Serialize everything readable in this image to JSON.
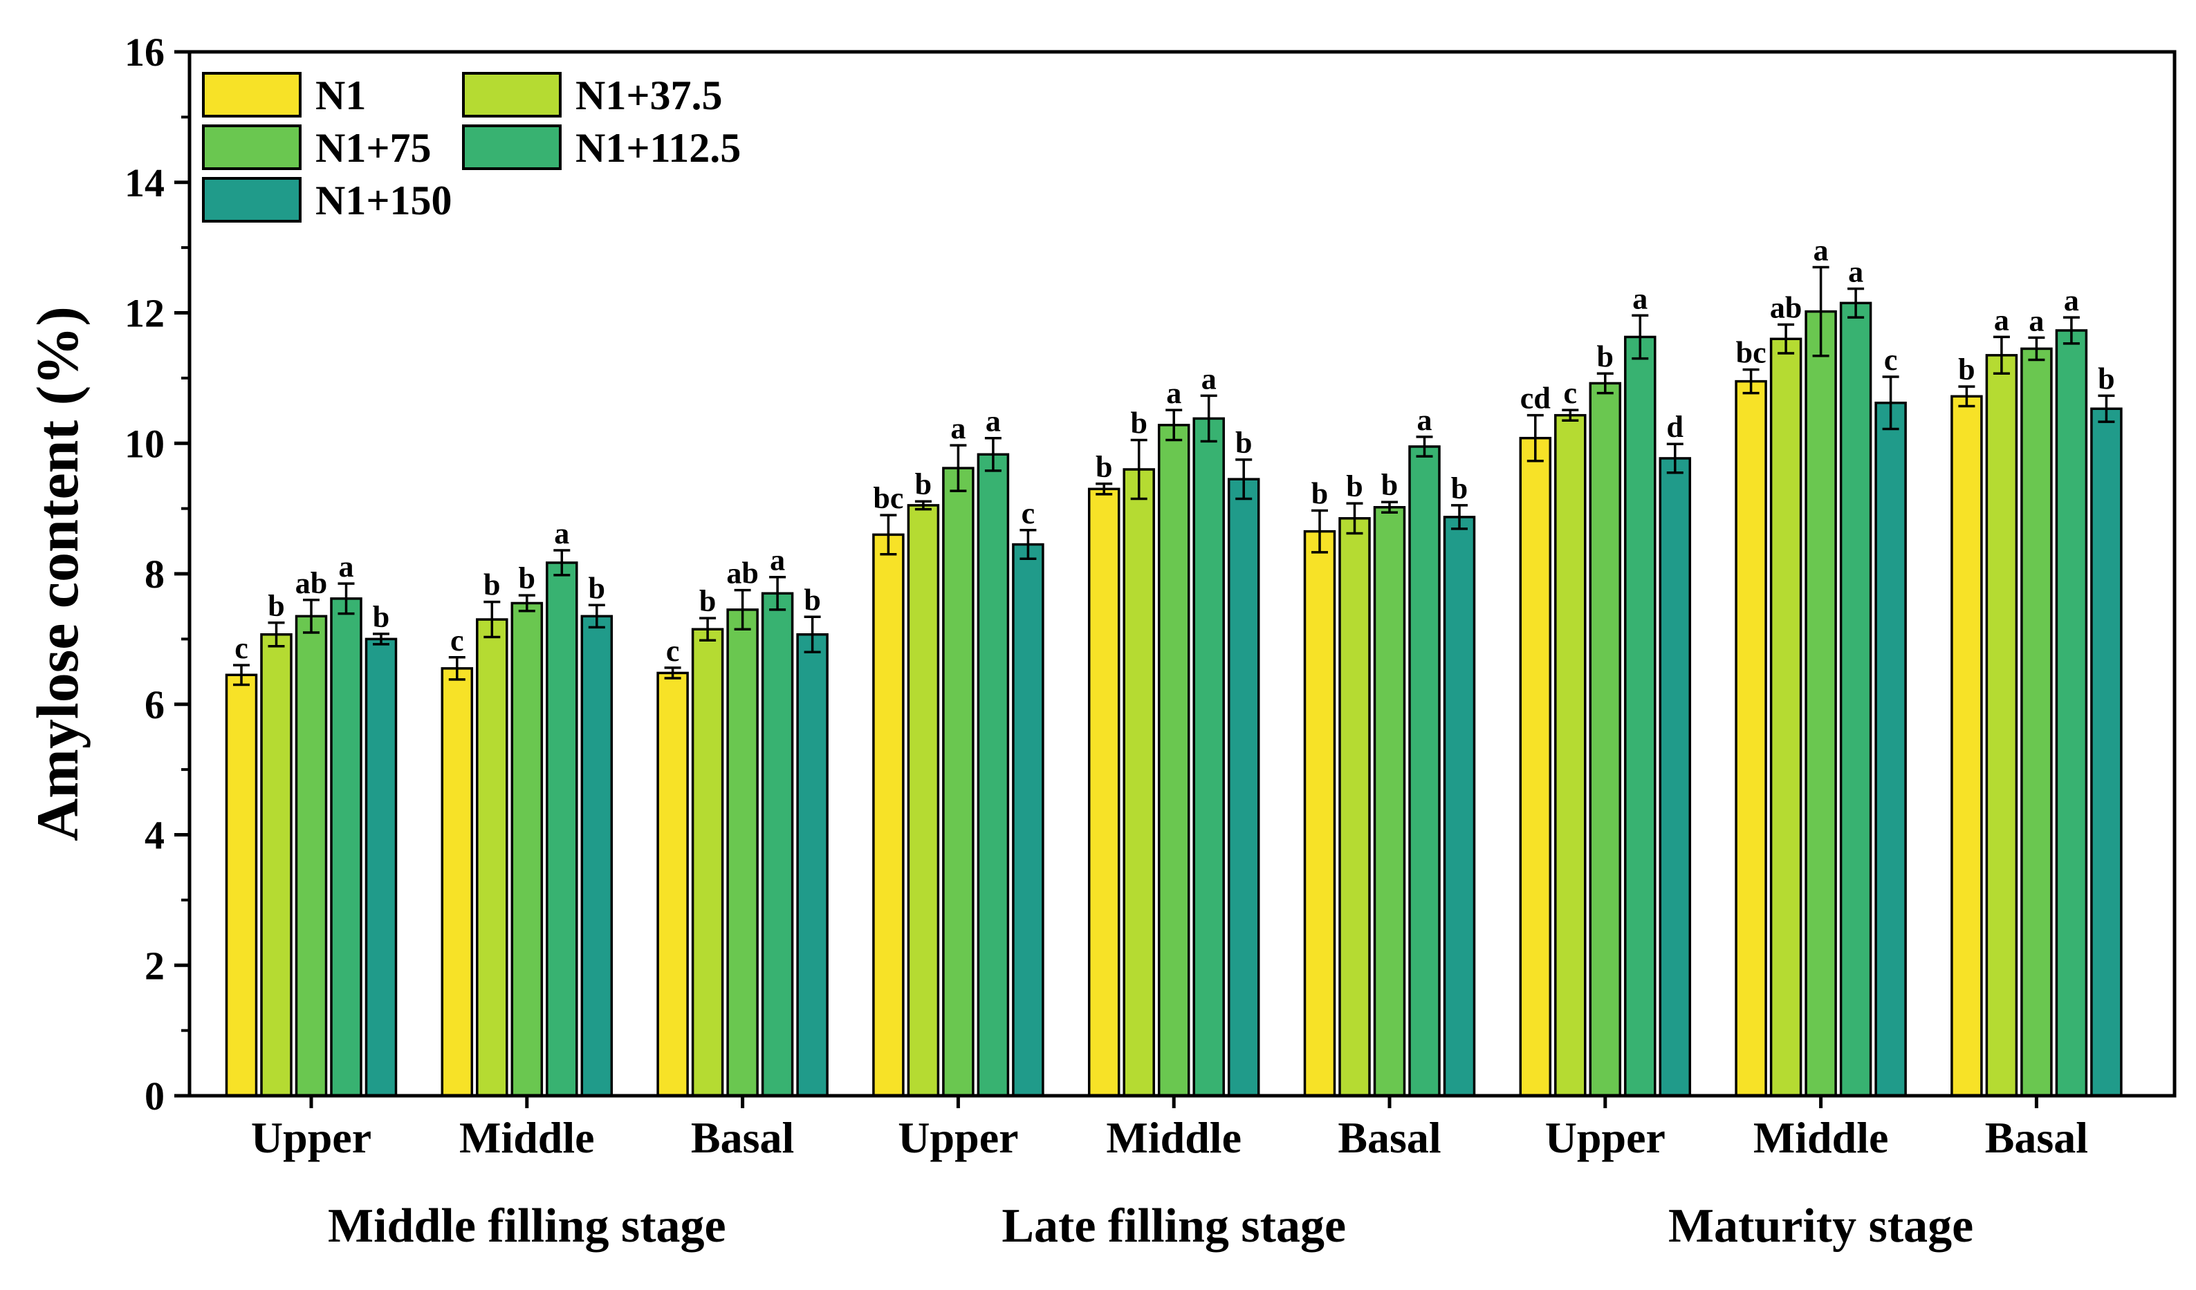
{
  "chart_data": {
    "type": "bar",
    "ylabel": "Amylose content (%)",
    "ylim": [
      0,
      16
    ],
    "yticks": [
      "0",
      "2",
      "4",
      "6",
      "8",
      "10",
      "12",
      "14",
      "16"
    ],
    "legend_position": "top-left",
    "groups": [
      {
        "stage": "Middle filling stage",
        "positions": [
          "Upper",
          "Middle",
          "Basal"
        ]
      },
      {
        "stage": "Late filling stage",
        "positions": [
          "Upper",
          "Middle",
          "Basal"
        ]
      },
      {
        "stage": "Maturity stage",
        "positions": [
          "Upper",
          "Middle",
          "Basal"
        ]
      }
    ],
    "series": [
      {
        "name": "N1",
        "color": "#f7e227",
        "values": [
          6.45,
          6.55,
          6.48,
          8.6,
          9.3,
          8.65,
          10.08,
          10.95,
          10.72
        ],
        "errors": [
          0.15,
          0.17,
          0.08,
          0.3,
          0.08,
          0.32,
          0.35,
          0.18,
          0.15
        ],
        "letters": [
          "c",
          "c",
          "c",
          "bc",
          "b",
          "b",
          "cd",
          "bc",
          "b"
        ]
      },
      {
        "name": "N1+37.5",
        "color": "#b5db32",
        "values": [
          7.07,
          7.3,
          7.15,
          9.05,
          9.6,
          8.85,
          10.43,
          11.6,
          11.35
        ],
        "errors": [
          0.18,
          0.27,
          0.17,
          0.06,
          0.45,
          0.23,
          0.08,
          0.22,
          0.28
        ],
        "letters": [
          "b",
          "b",
          "b",
          "b",
          "b",
          "b",
          "c",
          "ab",
          "a"
        ]
      },
      {
        "name": "N1+75",
        "color": "#6ac750",
        "values": [
          7.35,
          7.55,
          7.45,
          9.62,
          10.28,
          9.02,
          10.92,
          12.02,
          11.45
        ],
        "errors": [
          0.25,
          0.12,
          0.3,
          0.35,
          0.23,
          0.08,
          0.15,
          0.68,
          0.17
        ],
        "letters": [
          "ab",
          "b",
          "ab",
          "a",
          "a",
          "b",
          "b",
          "a",
          "a"
        ]
      },
      {
        "name": "N1+112.5",
        "color": "#38b271",
        "values": [
          7.62,
          8.17,
          7.7,
          9.83,
          10.38,
          9.95,
          11.63,
          12.15,
          11.73
        ],
        "errors": [
          0.23,
          0.19,
          0.25,
          0.25,
          0.35,
          0.15,
          0.33,
          0.22,
          0.2
        ],
        "letters": [
          "a",
          "a",
          "a",
          "a",
          "a",
          "a",
          "a",
          "a",
          "a"
        ]
      },
      {
        "name": "N1+150",
        "color": "#209b8a",
        "values": [
          7.0,
          7.35,
          7.07,
          8.45,
          9.45,
          8.87,
          9.77,
          10.62,
          10.53
        ],
        "errors": [
          0.08,
          0.17,
          0.27,
          0.22,
          0.3,
          0.18,
          0.22,
          0.4,
          0.2
        ],
        "letters": [
          "b",
          "b",
          "b",
          "c",
          "b",
          "b",
          "d",
          "c",
          "b"
        ]
      }
    ]
  }
}
